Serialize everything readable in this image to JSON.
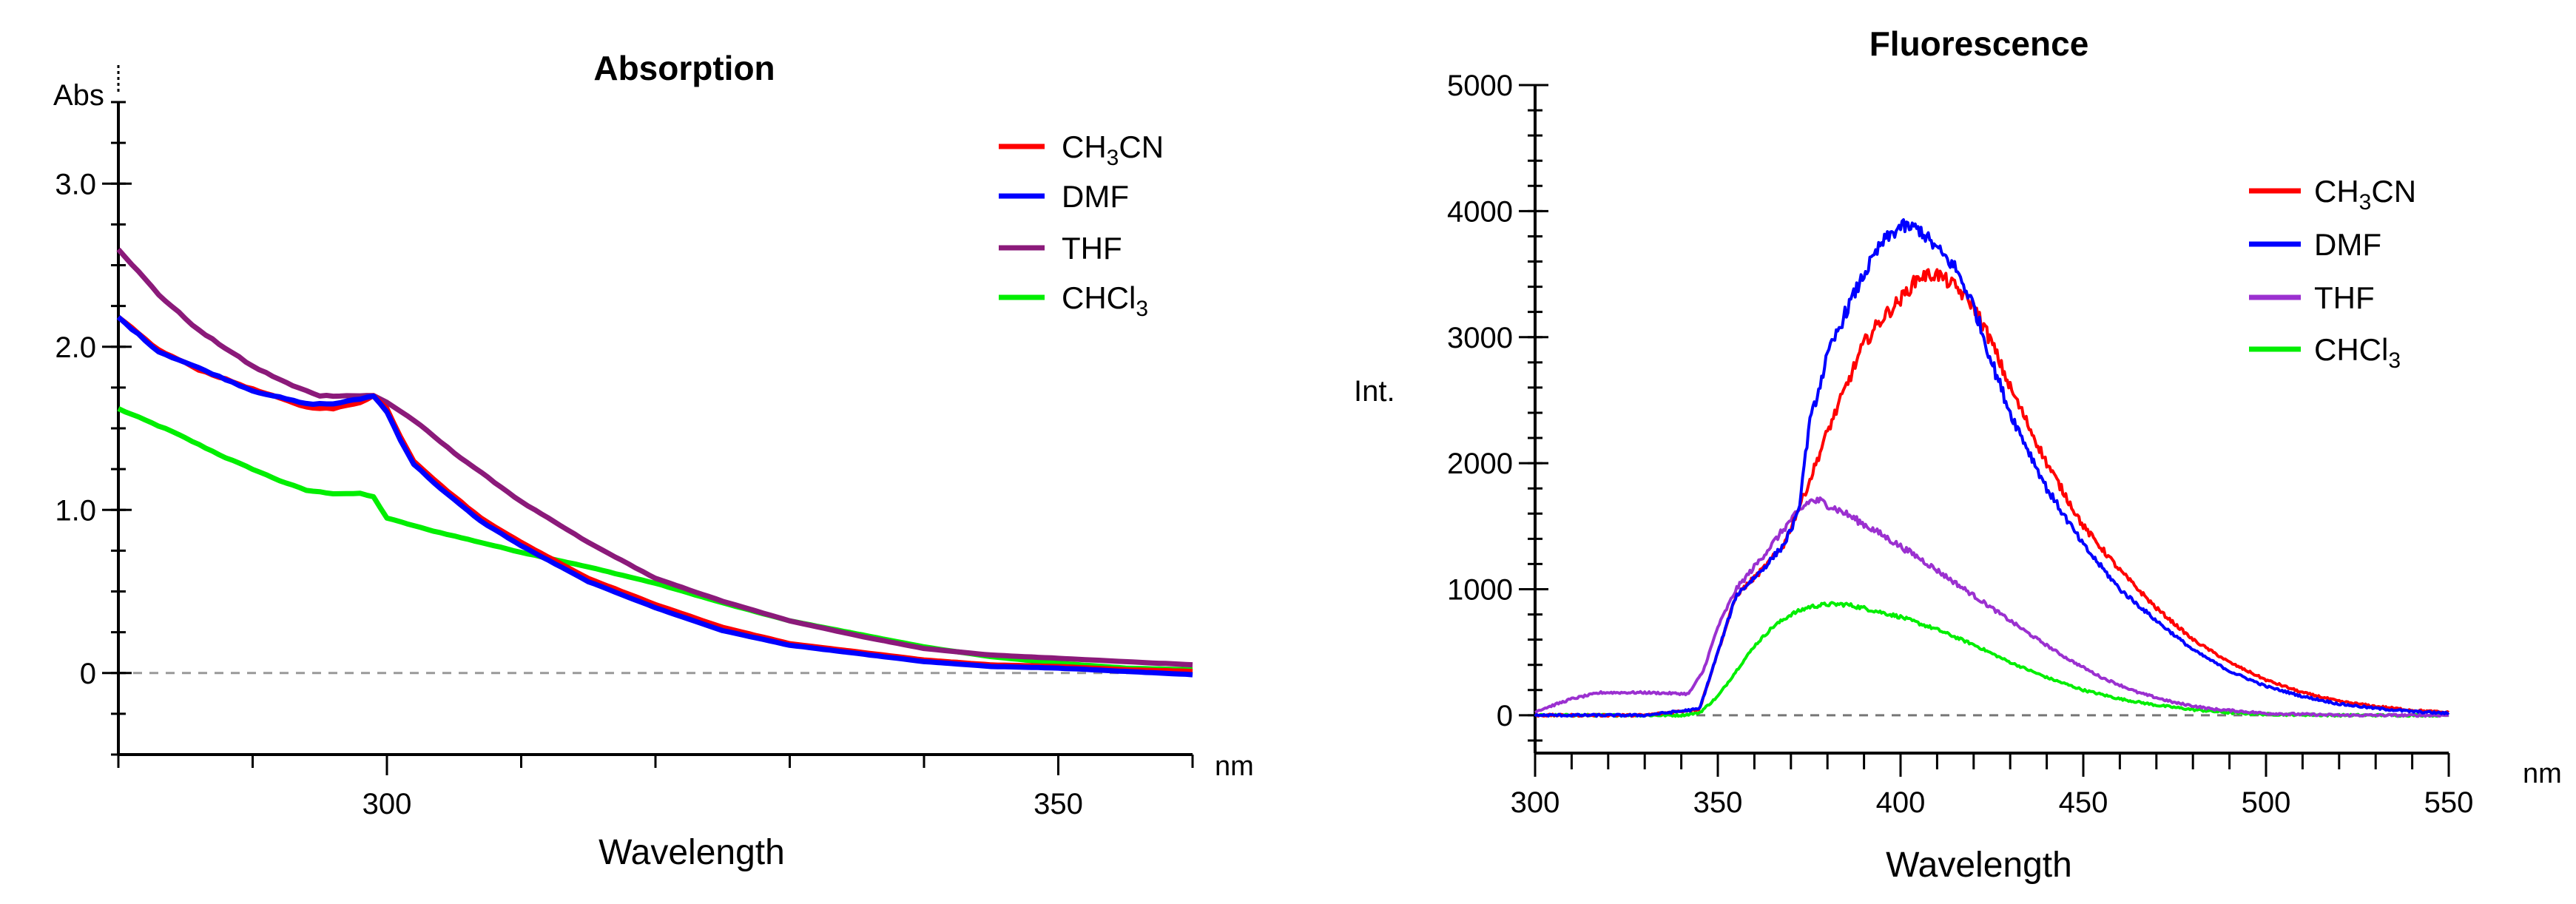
{
  "chart_data": [
    {
      "type": "line",
      "title": "Absorption",
      "xlabel": "Wavelength",
      "ylabel": "Abs",
      "x_unit": "nm",
      "xlim": [
        280,
        360
      ],
      "ylim": [
        -0.5,
        3.5
      ],
      "x_ticks": [
        300,
        350
      ],
      "y_ticks": [
        {
          "v": 0,
          "label": "0"
        },
        {
          "v": 1,
          "label": "1.0"
        },
        {
          "v": 2,
          "label": "2.0"
        },
        {
          "v": 3,
          "label": "3.0"
        }
      ],
      "baseline": 0,
      "legend_position": "top-right",
      "series": [
        {
          "name": "CH",
          "sub": "3",
          "name2": "CN",
          "color": "#ff0000",
          "points": [
            [
              280,
              2.18
            ],
            [
              283,
              1.98
            ],
            [
              286,
              1.86
            ],
            [
              290,
              1.74
            ],
            [
              294,
              1.63
            ],
            [
              296,
              1.62
            ],
            [
              298,
              1.66
            ],
            [
              299,
              1.7
            ],
            [
              300,
              1.62
            ],
            [
              301,
              1.45
            ],
            [
              302,
              1.3
            ],
            [
              304,
              1.15
            ],
            [
              307,
              0.95
            ],
            [
              310,
              0.8
            ],
            [
              315,
              0.58
            ],
            [
              320,
              0.42
            ],
            [
              325,
              0.28
            ],
            [
              330,
              0.18
            ],
            [
              335,
              0.13
            ],
            [
              340,
              0.08
            ],
            [
              345,
              0.05
            ],
            [
              350,
              0.04
            ],
            [
              355,
              0.02
            ],
            [
              360,
              0.01
            ]
          ]
        },
        {
          "name": "DMF",
          "sub": "",
          "name2": "",
          "color": "#0000ff",
          "points": [
            [
              280,
              2.18
            ],
            [
              283,
              1.97
            ],
            [
              286,
              1.87
            ],
            [
              290,
              1.73
            ],
            [
              294,
              1.65
            ],
            [
              296,
              1.65
            ],
            [
              298,
              1.68
            ],
            [
              299,
              1.7
            ],
            [
              300,
              1.6
            ],
            [
              301,
              1.43
            ],
            [
              302,
              1.28
            ],
            [
              304,
              1.13
            ],
            [
              307,
              0.93
            ],
            [
              310,
              0.78
            ],
            [
              315,
              0.56
            ],
            [
              320,
              0.4
            ],
            [
              325,
              0.26
            ],
            [
              330,
              0.17
            ],
            [
              335,
              0.12
            ],
            [
              340,
              0.07
            ],
            [
              345,
              0.04
            ],
            [
              350,
              0.03
            ],
            [
              355,
              0.01
            ],
            [
              360,
              -0.01
            ]
          ]
        },
        {
          "name": "THF",
          "sub": "",
          "name2": "",
          "color": "#8b1a7a",
          "points": [
            [
              280,
              2.6
            ],
            [
              283,
              2.32
            ],
            [
              286,
              2.1
            ],
            [
              290,
              1.88
            ],
            [
              293,
              1.76
            ],
            [
              295,
              1.7
            ],
            [
              298,
              1.7
            ],
            [
              299,
              1.7
            ],
            [
              300,
              1.66
            ],
            [
              302,
              1.55
            ],
            [
              305,
              1.35
            ],
            [
              310,
              1.05
            ],
            [
              315,
              0.8
            ],
            [
              320,
              0.58
            ],
            [
              325,
              0.44
            ],
            [
              330,
              0.32
            ],
            [
              335,
              0.23
            ],
            [
              340,
              0.15
            ],
            [
              345,
              0.11
            ],
            [
              350,
              0.09
            ],
            [
              355,
              0.07
            ],
            [
              360,
              0.05
            ]
          ]
        },
        {
          "name": "CHCl",
          "sub": "3",
          "name2": "",
          "color": "#00ee00",
          "points": [
            [
              280,
              1.62
            ],
            [
              284,
              1.48
            ],
            [
              288,
              1.32
            ],
            [
              292,
              1.18
            ],
            [
              294,
              1.12
            ],
            [
              296,
              1.1
            ],
            [
              298,
              1.1
            ],
            [
              299,
              1.08
            ],
            [
              300,
              0.95
            ],
            [
              303,
              0.88
            ],
            [
              307,
              0.8
            ],
            [
              310,
              0.74
            ],
            [
              315,
              0.65
            ],
            [
              320,
              0.55
            ],
            [
              325,
              0.43
            ],
            [
              330,
              0.32
            ],
            [
              335,
              0.24
            ],
            [
              340,
              0.16
            ],
            [
              345,
              0.1
            ],
            [
              350,
              0.06
            ],
            [
              355,
              0.03
            ],
            [
              360,
              0.02
            ]
          ]
        }
      ]
    },
    {
      "type": "line",
      "title": "Fluorescence",
      "xlabel": "Wavelength",
      "ylabel": "Int.",
      "x_unit": "nm",
      "xlim": [
        300,
        550
      ],
      "ylim": [
        -300,
        5000
      ],
      "x_ticks": [
        300,
        350,
        400,
        450,
        500,
        550
      ],
      "y_ticks": [
        0,
        1000,
        2000,
        3000,
        4000,
        5000
      ],
      "baseline": 0,
      "legend_position": "top-right",
      "series": [
        {
          "name": "CH",
          "sub": "3",
          "name2": "CN",
          "color": "#ff0000",
          "points": [
            [
              300,
              0
            ],
            [
              330,
              0
            ],
            [
              345,
              50
            ],
            [
              350,
              500
            ],
            [
              355,
              950
            ],
            [
              362,
              1150
            ],
            [
              368,
              1350
            ],
            [
              375,
              1850
            ],
            [
              380,
              2250
            ],
            [
              385,
              2600
            ],
            [
              390,
              2950
            ],
            [
              395,
              3150
            ],
            [
              400,
              3300
            ],
            [
              405,
              3480
            ],
            [
              410,
              3500
            ],
            [
              415,
              3400
            ],
            [
              420,
              3250
            ],
            [
              425,
              2950
            ],
            [
              430,
              2600
            ],
            [
              440,
              2000
            ],
            [
              450,
              1500
            ],
            [
              460,
              1150
            ],
            [
              470,
              850
            ],
            [
              480,
              600
            ],
            [
              490,
              420
            ],
            [
              500,
              280
            ],
            [
              510,
              180
            ],
            [
              520,
              110
            ],
            [
              530,
              70
            ],
            [
              540,
              40
            ],
            [
              550,
              20
            ]
          ]
        },
        {
          "name": "DMF",
          "sub": "",
          "name2": "",
          "color": "#0000ff",
          "points": [
            [
              300,
              0
            ],
            [
              330,
              0
            ],
            [
              345,
              50
            ],
            [
              350,
              500
            ],
            [
              355,
              950
            ],
            [
              362,
              1150
            ],
            [
              368,
              1350
            ],
            [
              372,
              1600
            ],
            [
              375,
              2300
            ],
            [
              380,
              2850
            ],
            [
              385,
              3200
            ],
            [
              390,
              3500
            ],
            [
              395,
              3750
            ],
            [
              400,
              3880
            ],
            [
              405,
              3860
            ],
            [
              410,
              3700
            ],
            [
              415,
              3550
            ],
            [
              420,
              3250
            ],
            [
              425,
              2800
            ],
            [
              430,
              2400
            ],
            [
              440,
              1800
            ],
            [
              450,
              1350
            ],
            [
              460,
              1000
            ],
            [
              470,
              750
            ],
            [
              480,
              520
            ],
            [
              490,
              350
            ],
            [
              500,
              230
            ],
            [
              510,
              150
            ],
            [
              520,
              90
            ],
            [
              530,
              55
            ],
            [
              540,
              30
            ],
            [
              550,
              15
            ]
          ]
        },
        {
          "name": "THF",
          "sub": "",
          "name2": "",
          "color": "#9b30d0",
          "points": [
            [
              300,
              30
            ],
            [
              310,
              130
            ],
            [
              318,
              180
            ],
            [
              330,
              180
            ],
            [
              342,
              170
            ],
            [
              346,
              350
            ],
            [
              350,
              700
            ],
            [
              355,
              1000
            ],
            [
              362,
              1250
            ],
            [
              370,
              1550
            ],
            [
              375,
              1700
            ],
            [
              378,
              1700
            ],
            [
              385,
              1600
            ],
            [
              395,
              1430
            ],
            [
              405,
              1250
            ],
            [
              415,
              1050
            ],
            [
              425,
              850
            ],
            [
              435,
              650
            ],
            [
              445,
              460
            ],
            [
              455,
              300
            ],
            [
              465,
              180
            ],
            [
              475,
              100
            ],
            [
              485,
              50
            ],
            [
              500,
              15
            ],
            [
              520,
              0
            ],
            [
              550,
              0
            ]
          ]
        },
        {
          "name": "CHCl",
          "sub": "3",
          "name2": "",
          "color": "#00ee00",
          "points": [
            [
              300,
              0
            ],
            [
              340,
              0
            ],
            [
              345,
              20
            ],
            [
              350,
              150
            ],
            [
              355,
              350
            ],
            [
              360,
              550
            ],
            [
              365,
              700
            ],
            [
              370,
              800
            ],
            [
              375,
              860
            ],
            [
              380,
              880
            ],
            [
              385,
              880
            ],
            [
              390,
              850
            ],
            [
              400,
              780
            ],
            [
              410,
              680
            ],
            [
              420,
              560
            ],
            [
              430,
              420
            ],
            [
              440,
              300
            ],
            [
              450,
              200
            ],
            [
              460,
              130
            ],
            [
              470,
              80
            ],
            [
              480,
              45
            ],
            [
              490,
              20
            ],
            [
              500,
              8
            ],
            [
              520,
              0
            ],
            [
              550,
              0
            ]
          ]
        }
      ]
    }
  ]
}
